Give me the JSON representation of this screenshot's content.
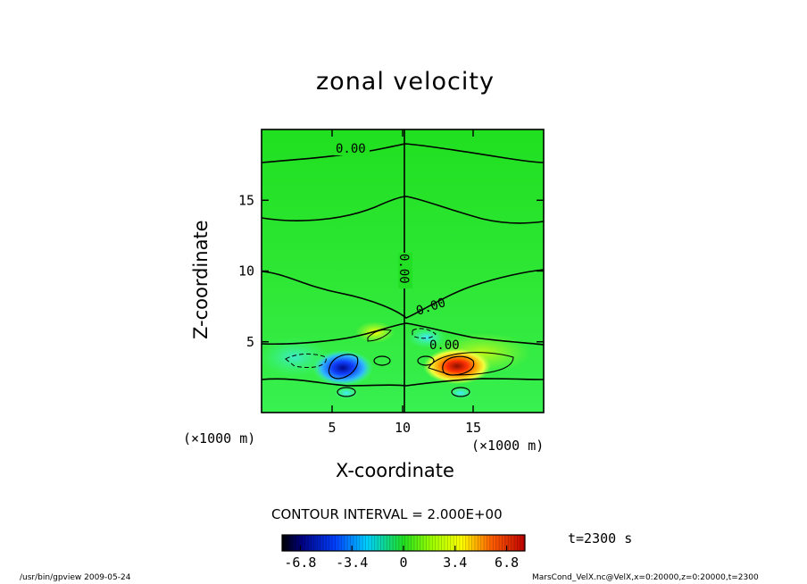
{
  "chart_data": {
    "type": "contour",
    "title": "zonal velocity",
    "xlabel": "X-coordinate",
    "ylabel": "Z-coordinate",
    "x_unit_label": "(×1000 m)",
    "y_unit_label": "(×1000 m)",
    "xlim": [
      0,
      20
    ],
    "ylim": [
      0,
      20
    ],
    "x_ticks": [
      5,
      10,
      15
    ],
    "y_ticks": [
      5,
      10,
      15
    ],
    "contour_interval_label": "CONTOUR INTERVAL = 2.000E+00",
    "contour_labels": [
      "0.00",
      "0.00",
      "0.00",
      "0.00"
    ],
    "time_label": "t=2300 s",
    "colorbar": {
      "range": [
        -8,
        8
      ],
      "tick_labels": [
        "-6.8",
        "-3.4",
        "0",
        "3.4",
        "6.8"
      ],
      "tick_values": [
        -6.8,
        -3.4,
        0,
        3.4,
        6.8
      ]
    },
    "features": [
      {
        "x": 5.8,
        "z": 3.0,
        "value": -6.5
      },
      {
        "x": 14.3,
        "z": 3.2,
        "value": 7.0
      },
      {
        "x": 8.2,
        "z": 5.2,
        "value": 2.5
      },
      {
        "x": 11.5,
        "z": 5.5,
        "value": -2.0
      },
      {
        "x": 2.5,
        "z": 3.8,
        "value": -2.5
      },
      {
        "x": 17.0,
        "z": 3.6,
        "value": 3.0
      }
    ]
  },
  "footer": {
    "left": "/usr/bin/gpview  2009-05-24",
    "right": "MarsCond_VelX.nc@VelX,x=0:20000,z=0:20000,t=2300"
  },
  "colors": {
    "background_field": "#22dd22",
    "negative_extreme": "#0000cc",
    "positive_extreme": "#dd2200"
  }
}
